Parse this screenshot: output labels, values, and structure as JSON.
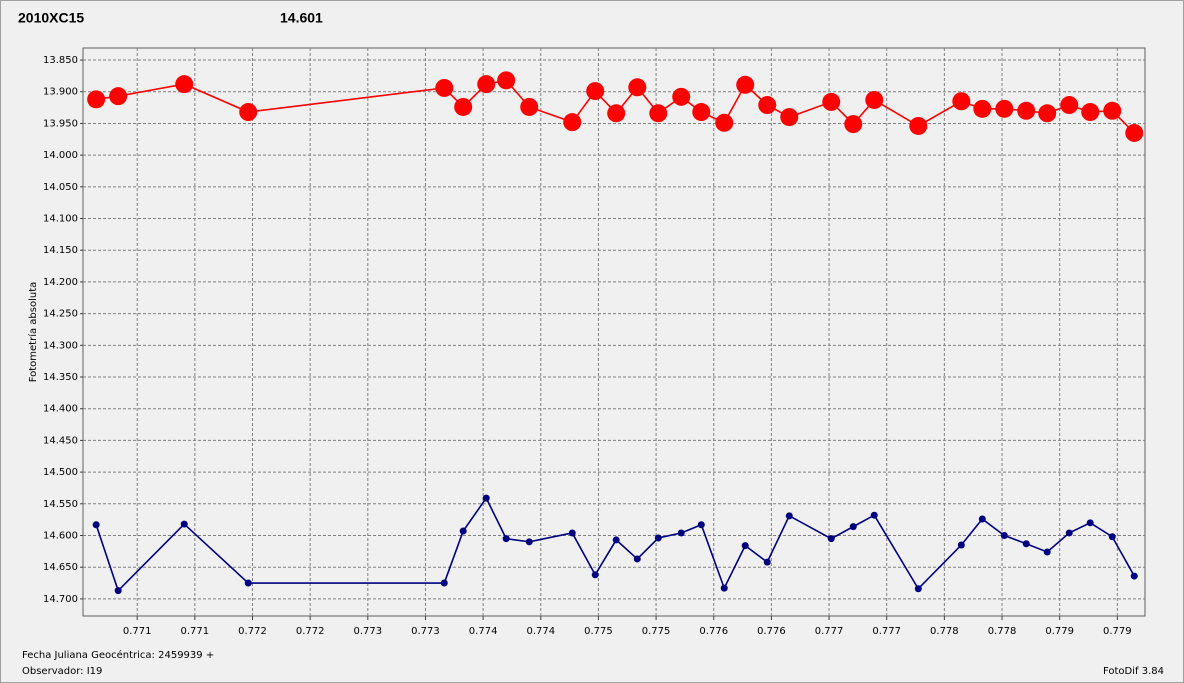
{
  "chart_data": {
    "type": "line",
    "inverted_y": true,
    "grid": true,
    "ylabel": "Fotometría absoluta",
    "xlabel": "Fecha Juliana Geocéntrica: 2459939 +",
    "observer": "Observador: I19",
    "software": "FotoDif 3.84",
    "x": [
      0.770144,
      0.770335,
      0.770908,
      0.771463,
      0.773163,
      0.773327,
      0.773527,
      0.7737,
      0.7739,
      0.774273,
      0.774472,
      0.774654,
      0.774837,
      0.775019,
      0.775218,
      0.775392,
      0.775591,
      0.775773,
      0.775964,
      0.776155,
      0.776519,
      0.77671,
      0.776892,
      0.777274,
      0.777647,
      0.777829,
      0.77802,
      0.77821,
      0.778392,
      0.778583,
      0.778765,
      0.778956,
      0.779147
    ],
    "series": [
      {
        "name": "2010XC15",
        "color": "#ff0000",
        "marker_size": 9,
        "values": [
          13.912,
          13.907,
          13.888,
          13.932,
          13.894,
          13.924,
          13.888,
          13.882,
          13.924,
          13.948,
          13.899,
          13.934,
          13.893,
          13.934,
          13.908,
          13.932,
          13.949,
          13.889,
          13.921,
          13.94,
          13.916,
          13.951,
          13.913,
          13.954,
          13.915,
          13.927,
          13.927,
          13.93,
          13.934,
          13.921,
          13.932,
          13.93,
          13.965
        ]
      },
      {
        "name": "14.601",
        "color": "#000080",
        "marker_size": 3.5,
        "values": [
          14.583,
          14.687,
          14.582,
          14.675,
          14.675,
          14.593,
          14.541,
          14.605,
          14.61,
          14.596,
          14.662,
          14.607,
          14.637,
          14.604,
          14.596,
          14.583,
          14.683,
          14.616,
          14.642,
          14.569,
          14.605,
          14.586,
          14.568,
          14.684,
          14.615,
          14.574,
          14.6,
          14.613,
          14.626,
          14.596,
          14.58,
          14.602,
          14.664
        ]
      }
    ],
    "xlim": [
      0.77003,
      0.77924
    ],
    "ylim": [
      13.831,
      14.727
    ],
    "xticks": [
      {
        "value": 0.7705,
        "label": "0.771"
      },
      0.771,
      {
        "value": 0.7715,
        "label": "0.772"
      },
      0.772,
      {
        "value": 0.7725,
        "label": "0.773"
      },
      0.773,
      {
        "value": 0.7735,
        "label": "0.774"
      },
      0.774,
      {
        "value": 0.7745,
        "label": "0.775"
      },
      0.775,
      {
        "value": 0.7755,
        "label": "0.776"
      },
      0.776,
      {
        "value": 0.7765,
        "label": "0.777"
      },
      0.777,
      {
        "value": 0.7775,
        "label": "0.778"
      },
      0.778,
      {
        "value": 0.7785,
        "label": "0.779"
      },
      0.779
    ],
    "yticks": [
      {
        "value": 13.85,
        "label": "13.850"
      },
      {
        "value": 13.9,
        "label": "13.900"
      },
      {
        "value": 13.95,
        "label": "13.950"
      },
      {
        "value": 14.0,
        "label": "14.000"
      },
      {
        "value": 14.05,
        "label": "14.050"
      },
      {
        "value": 14.1,
        "label": "14.100"
      },
      {
        "value": 14.15,
        "label": "14.150"
      },
      {
        "value": 14.2,
        "label": "14.200"
      },
      {
        "value": 14.25,
        "label": "14.250"
      },
      {
        "value": 14.3,
        "label": "14.300"
      },
      {
        "value": 14.35,
        "label": "14.350"
      },
      {
        "value": 14.4,
        "label": "14.400"
      },
      {
        "value": 14.45,
        "label": "14.450"
      },
      {
        "value": 14.5,
        "label": "14.500"
      },
      {
        "value": 14.55,
        "label": "14.550"
      },
      {
        "value": 14.6,
        "label": "14.600"
      },
      {
        "value": 14.65,
        "label": "14.650"
      },
      {
        "value": 14.7,
        "label": "14.700"
      }
    ]
  }
}
